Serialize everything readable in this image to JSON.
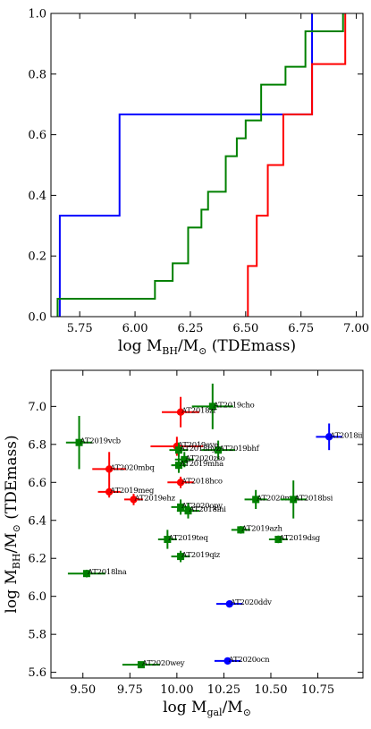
{
  "chart_data": [
    {
      "type": "step",
      "xlabel": "log M",
      "xlabel_sub": "BH",
      "xlabel_mid": "/M",
      "xlabel_sub2": "⊙",
      "xlabel_tail": " (TDEmass)",
      "ylabel": "",
      "xlim": [
        5.62,
        7.03
      ],
      "ylim": [
        0.0,
        1.0
      ],
      "xticks": [
        5.75,
        6.0,
        6.25,
        6.5,
        6.75,
        7.0
      ],
      "yticks": [
        0.0,
        0.2,
        0.4,
        0.6,
        0.8,
        1.0
      ],
      "tick_format_x": 2,
      "tick_format_y": 1,
      "series": [
        {
          "color": "#0000ff",
          "x": [
            5.66,
            5.66,
            5.93,
            5.93,
            6.8,
            6.8
          ],
          "y": [
            0.0,
            0.333,
            0.333,
            0.667,
            0.667,
            1.0
          ]
        },
        {
          "color": "#008000",
          "x": [
            5.65,
            5.65,
            6.09,
            6.09,
            6.17,
            6.17,
            6.24,
            6.24,
            6.3,
            6.3,
            6.33,
            6.33,
            6.41,
            6.41,
            6.46,
            6.46,
            6.5,
            6.5,
            6.57,
            6.57,
            6.68,
            6.68,
            6.77,
            6.77,
            6.94,
            6.94
          ],
          "y": [
            0.0,
            0.059,
            0.059,
            0.118,
            0.118,
            0.176,
            0.176,
            0.294,
            0.294,
            0.353,
            0.353,
            0.412,
            0.412,
            0.529,
            0.529,
            0.588,
            0.588,
            0.647,
            0.647,
            0.765,
            0.765,
            0.824,
            0.824,
            0.941,
            0.941,
            1.0
          ]
        },
        {
          "color": "#ff0000",
          "x": [
            6.51,
            6.51,
            6.55,
            6.55,
            6.6,
            6.6,
            6.67,
            6.67,
            6.8,
            6.8,
            6.95,
            6.95
          ],
          "y": [
            0.0,
            0.167,
            0.167,
            0.333,
            0.333,
            0.5,
            0.5,
            0.667,
            0.667,
            0.833,
            0.833,
            1.0
          ]
        }
      ]
    },
    {
      "type": "scatter",
      "xlabel": "log M",
      "xlabel_sub": "gal",
      "xlabel_mid": "/M",
      "xlabel_sub2": "⊙",
      "xlabel_tail": "",
      "ylabel": "log M",
      "ylabel_sub": "BH",
      "ylabel_mid": "/M",
      "ylabel_sub2": "⊙",
      "ylabel_tail": " (TDEmass)",
      "xlim": [
        9.33,
        10.99
      ],
      "ylim": [
        5.57,
        7.19
      ],
      "xticks": [
        9.5,
        9.75,
        10.0,
        10.25,
        10.5,
        10.75
      ],
      "yticks": [
        5.6,
        5.8,
        6.0,
        6.2,
        6.4,
        6.6,
        6.8,
        7.0
      ],
      "tick_format_x": 2,
      "tick_format_y": 1,
      "points": [
        {
          "label": "AT2019cho",
          "x": 10.19,
          "y": 7.0,
          "xerr": 0.11,
          "yerr": 0.12,
          "color": "#008000",
          "marker": "square"
        },
        {
          "label": "AT2019vcb",
          "x": 9.48,
          "y": 6.81,
          "xerr": 0.07,
          "yerr": 0.14,
          "color": "#008000",
          "marker": "square"
        },
        {
          "label": "AT2019bhf",
          "x": 10.22,
          "y": 6.77,
          "xerr": 0.09,
          "yerr": 0.05,
          "color": "#008000",
          "marker": "square"
        },
        {
          "label": "AT2018zr",
          "x": 10.02,
          "y": 6.97,
          "xerr": 0.1,
          "yerr": 0.08,
          "color": "#ff0000",
          "marker": "circle"
        },
        {
          "label": "AT2019eve",
          "x": 10.0,
          "y": 6.79,
          "xerr": 0.14,
          "yerr": 0.05,
          "color": "#ff0000",
          "marker": "circle"
        },
        {
          "label": "AT2018hyz",
          "x": 10.01,
          "y": 6.77,
          "xerr": 0.05,
          "yerr": 0.04,
          "color": "#008000",
          "marker": "square"
        },
        {
          "label": "AT2020zso",
          "x": 10.04,
          "y": 6.72,
          "xerr": 0.05,
          "yerr": 0.04,
          "color": "#008000",
          "marker": "square"
        },
        {
          "label": "AT2019mha",
          "x": 10.01,
          "y": 6.69,
          "xerr": 0.04,
          "yerr": 0.04,
          "color": "#008000",
          "marker": "square"
        },
        {
          "label": "AT2020mbq",
          "x": 9.64,
          "y": 6.67,
          "xerr": 0.09,
          "yerr": 0.09,
          "color": "#ff0000",
          "marker": "circle"
        },
        {
          "label": "AT2018hco",
          "x": 10.02,
          "y": 6.6,
          "xerr": 0.07,
          "yerr": 0.03,
          "color": "#ff0000",
          "marker": "circle"
        },
        {
          "label": "AT2019meg",
          "x": 9.64,
          "y": 6.55,
          "xerr": 0.06,
          "yerr": 0.03,
          "color": "#ff0000",
          "marker": "circle"
        },
        {
          "label": "AT2019ehz",
          "x": 9.77,
          "y": 6.51,
          "xerr": 0.05,
          "yerr": 0.03,
          "color": "#ff0000",
          "marker": "circle"
        },
        {
          "label": "AT2020mot",
          "x": 10.42,
          "y": 6.51,
          "xerr": 0.06,
          "yerr": 0.05,
          "color": "#008000",
          "marker": "square"
        },
        {
          "label": "AT2018bsi",
          "x": 10.62,
          "y": 6.51,
          "xerr": 0.07,
          "yerr": 0.1,
          "color": "#008000",
          "marker": "square"
        },
        {
          "label": "AT2020opy",
          "x": 10.02,
          "y": 6.47,
          "xerr": 0.05,
          "yerr": 0.04,
          "color": "#008000",
          "marker": "square"
        },
        {
          "label": "AT2018lni",
          "x": 10.06,
          "y": 6.45,
          "xerr": 0.06,
          "yerr": 0.04,
          "color": "#008000",
          "marker": "square"
        },
        {
          "label": "AT2019azh",
          "x": 10.34,
          "y": 6.35,
          "xerr": 0.05,
          "yerr": 0.02,
          "color": "#008000",
          "marker": "square"
        },
        {
          "label": "AT2019teq",
          "x": 9.95,
          "y": 6.3,
          "xerr": 0.05,
          "yerr": 0.05,
          "color": "#008000",
          "marker": "square"
        },
        {
          "label": "AT2019dsg",
          "x": 10.54,
          "y": 6.3,
          "xerr": 0.05,
          "yerr": 0.02,
          "color": "#008000",
          "marker": "square"
        },
        {
          "label": "AT2019qiz",
          "x": 10.02,
          "y": 6.21,
          "xerr": 0.05,
          "yerr": 0.03,
          "color": "#008000",
          "marker": "square"
        },
        {
          "label": "AT2018lna",
          "x": 9.52,
          "y": 6.12,
          "xerr": 0.1,
          "yerr": 0.02,
          "color": "#008000",
          "marker": "square"
        },
        {
          "label": "AT2018iih",
          "x": 10.81,
          "y": 6.84,
          "xerr": 0.07,
          "yerr": 0.07,
          "color": "#0000ff",
          "marker": "circle"
        },
        {
          "label": "AT2020ddv",
          "x": 10.28,
          "y": 5.96,
          "xerr": 0.07,
          "yerr": 0.01,
          "color": "#0000ff",
          "marker": "circle"
        },
        {
          "label": "AT2020ocn",
          "x": 10.27,
          "y": 5.66,
          "xerr": 0.07,
          "yerr": 0.01,
          "color": "#0000ff",
          "marker": "circle"
        },
        {
          "label": "AT2020wey",
          "x": 9.81,
          "y": 5.64,
          "xerr": 0.1,
          "yerr": 0.01,
          "color": "#008000",
          "marker": "square"
        }
      ]
    }
  ]
}
